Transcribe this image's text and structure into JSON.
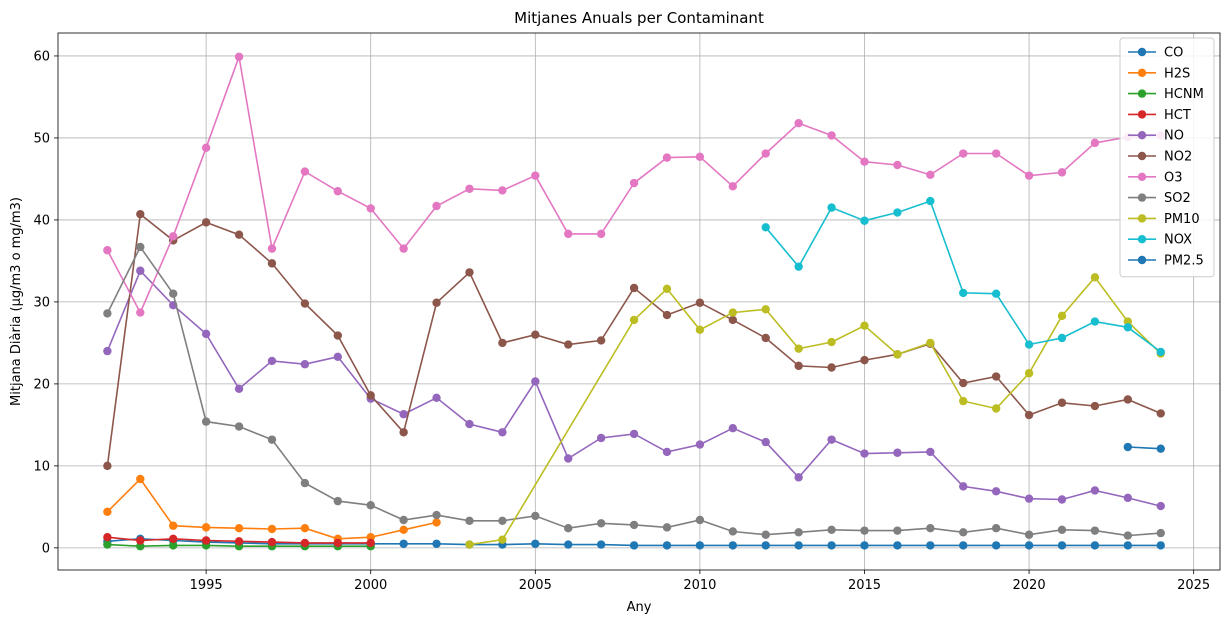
{
  "chart_data": {
    "type": "line",
    "title": "Mitjanes Anuals per Contaminant",
    "xlabel": "Any",
    "ylabel": "Mitjana Diària (µg/m3 o mg/m3)",
    "xlim": [
      1990.5,
      2025.8
    ],
    "ylim": [
      -2.7,
      62.8
    ],
    "xticks": [
      1995,
      2000,
      2005,
      2010,
      2015,
      2020,
      2025
    ],
    "yticks": [
      0,
      10,
      20,
      30,
      40,
      50,
      60
    ],
    "grid": true,
    "legend_position": "top-right",
    "series": [
      {
        "name": "CO",
        "color": "#1f77b4",
        "x": [
          1992,
          1993,
          1994,
          1995,
          1996,
          1997,
          1998,
          1999,
          2000,
          2001,
          2002,
          2003,
          2004,
          2005,
          2006,
          2007,
          2008,
          2009,
          2010,
          2011,
          2012,
          2013,
          2014,
          2015,
          2016,
          2017,
          2018,
          2019,
          2020,
          2021,
          2022,
          2023,
          2024
        ],
        "y": [
          0.8,
          1.1,
          0.9,
          0.7,
          0.6,
          0.5,
          0.5,
          0.5,
          0.5,
          0.5,
          0.5,
          0.4,
          0.4,
          0.5,
          0.4,
          0.4,
          0.3,
          0.3,
          0.3,
          0.3,
          0.3,
          0.3,
          0.3,
          0.3,
          0.3,
          0.3,
          0.3,
          0.3,
          0.3,
          0.3,
          0.3,
          0.3,
          0.3
        ]
      },
      {
        "name": "H2S",
        "color": "#ff7f0e",
        "x": [
          1992,
          1993,
          1994,
          1995,
          1996,
          1997,
          1998,
          1999,
          2000,
          2001,
          2002
        ],
        "y": [
          4.4,
          8.4,
          2.7,
          2.5,
          2.4,
          2.3,
          2.4,
          1.1,
          1.3,
          2.2,
          3.1
        ]
      },
      {
        "name": "HCNM",
        "color": "#2ca02c",
        "x": [
          1992,
          1993,
          1994,
          1995,
          1996,
          1997,
          1998,
          1999,
          2000
        ],
        "y": [
          0.4,
          0.2,
          0.3,
          0.3,
          0.2,
          0.2,
          0.2,
          0.2,
          0.2
        ]
      },
      {
        "name": "HCT",
        "color": "#d62728",
        "x": [
          1992,
          1993,
          1994,
          1995,
          1996,
          1997,
          1998,
          1999,
          2000
        ],
        "y": [
          1.3,
          0.9,
          1.1,
          0.9,
          0.8,
          0.7,
          0.6,
          0.6,
          0.6
        ]
      },
      {
        "name": "NO",
        "color": "#9467bd",
        "x": [
          1992,
          1993,
          1994,
          1995,
          1996,
          1997,
          1998,
          1999,
          2000,
          2001,
          2002,
          2003,
          2004,
          2005,
          2006,
          2007,
          2008,
          2009,
          2010,
          2011,
          2012,
          2013,
          2014,
          2015,
          2016,
          2017,
          2018,
          2019,
          2020,
          2021,
          2022,
          2023,
          2024
        ],
        "y": [
          24.0,
          33.8,
          29.6,
          26.1,
          19.4,
          22.8,
          22.4,
          23.3,
          18.2,
          16.3,
          18.3,
          15.1,
          14.1,
          20.3,
          10.9,
          13.4,
          13.9,
          11.7,
          12.6,
          14.6,
          12.9,
          8.6,
          13.2,
          11.5,
          11.6,
          11.7,
          7.5,
          6.9,
          6.0,
          5.9,
          7.0,
          6.1,
          5.1
        ]
      },
      {
        "name": "NO2",
        "color": "#8c564b",
        "x": [
          1992,
          1993,
          1994,
          1995,
          1996,
          1997,
          1998,
          1999,
          2000,
          2001,
          2002,
          2003,
          2004,
          2005,
          2006,
          2007,
          2008,
          2009,
          2010,
          2011,
          2012,
          2013,
          2014,
          2015,
          2016,
          2017,
          2018,
          2019,
          2020,
          2021,
          2022,
          2023,
          2024
        ],
        "y": [
          10.0,
          40.7,
          37.5,
          39.7,
          38.2,
          34.7,
          29.8,
          25.9,
          18.6,
          14.1,
          29.9,
          33.6,
          25.0,
          26.0,
          24.8,
          25.3,
          31.7,
          28.4,
          29.9,
          27.8,
          25.6,
          22.2,
          22.0,
          22.9,
          23.6,
          24.9,
          20.1,
          20.9,
          16.2,
          17.7,
          17.3,
          18.1,
          16.4
        ]
      },
      {
        "name": "O3",
        "color": "#e377c2",
        "x": [
          1992,
          1993,
          1994,
          1995,
          1996,
          1997,
          1998,
          1999,
          2000,
          2001,
          2002,
          2003,
          2004,
          2005,
          2006,
          2007,
          2008,
          2009,
          2010,
          2011,
          2012,
          2013,
          2014,
          2015,
          2016,
          2017,
          2018,
          2019,
          2020,
          2021,
          2022,
          2023,
          2024
        ],
        "y": [
          36.3,
          28.7,
          38.0,
          48.8,
          59.9,
          36.5,
          45.9,
          43.5,
          41.4,
          36.5,
          41.7,
          43.8,
          43.6,
          45.4,
          38.3,
          38.3,
          44.5,
          47.6,
          47.7,
          44.1,
          48.1,
          51.8,
          50.3,
          47.1,
          46.7,
          45.5,
          48.1,
          48.1,
          45.4,
          45.8,
          49.4,
          50.1,
          50.3
        ]
      },
      {
        "name": "SO2",
        "color": "#7f7f7f",
        "x": [
          1992,
          1993,
          1994,
          1995,
          1996,
          1997,
          1998,
          1999,
          2000,
          2001,
          2002,
          2003,
          2004,
          2005,
          2006,
          2007,
          2008,
          2009,
          2010,
          2011,
          2012,
          2013,
          2014,
          2015,
          2016,
          2017,
          2018,
          2019,
          2020,
          2021,
          2022,
          2023,
          2024
        ],
        "y": [
          28.6,
          36.7,
          31.0,
          15.4,
          14.8,
          13.2,
          7.9,
          5.7,
          5.2,
          3.4,
          4.0,
          3.3,
          3.3,
          3.9,
          2.4,
          3.0,
          2.8,
          2.5,
          3.4,
          2.0,
          1.6,
          1.9,
          2.2,
          2.1,
          2.1,
          2.4,
          1.9,
          2.4,
          1.6,
          2.2,
          2.1,
          1.5,
          1.8
        ]
      },
      {
        "name": "PM10",
        "color": "#bcbd22",
        "x": [
          2003,
          2004,
          2008,
          2009,
          2010,
          2011,
          2012,
          2013,
          2014,
          2015,
          2016,
          2017,
          2018,
          2019,
          2020,
          2021,
          2022,
          2023,
          2024
        ],
        "y": [
          0.4,
          1.0,
          27.8,
          31.6,
          26.6,
          28.7,
          29.1,
          24.3,
          25.1,
          27.1,
          23.6,
          25.0,
          17.9,
          17.0,
          21.3,
          28.3,
          33.0,
          27.6,
          23.7
        ]
      },
      {
        "name": "NOX",
        "color": "#17becf",
        "x": [
          2012,
          2013,
          2014,
          2015,
          2016,
          2017,
          2018,
          2019,
          2020,
          2021,
          2022,
          2023,
          2024
        ],
        "y": [
          39.1,
          34.3,
          41.5,
          39.9,
          40.9,
          42.3,
          31.1,
          31.0,
          24.8,
          25.6,
          27.6,
          26.9,
          23.9
        ]
      },
      {
        "name": "PM2.5",
        "color": "#1f77b4",
        "x": [
          2023,
          2024
        ],
        "y": [
          12.3,
          12.1
        ]
      }
    ]
  }
}
